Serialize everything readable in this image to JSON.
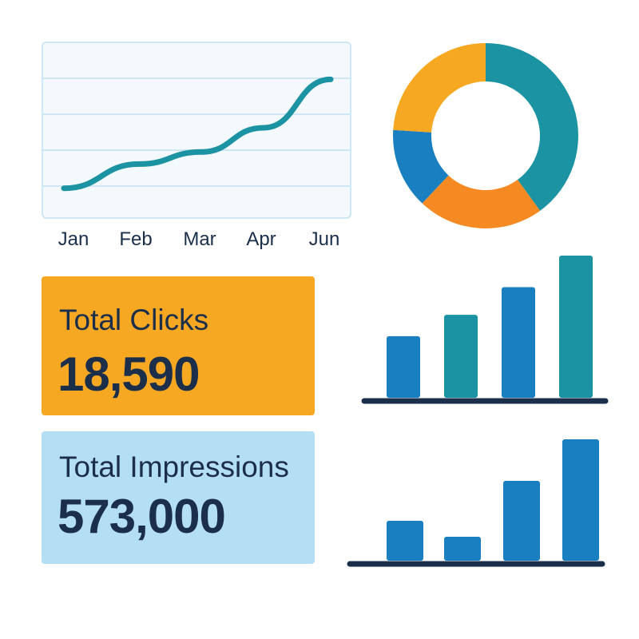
{
  "colors": {
    "teal": "#1b93a3",
    "blue": "#1a7fc0",
    "orange": "#f7a823",
    "deep_orange": "#f58a22",
    "navy": "#1b2e4a",
    "light_blue": "#b4def4"
  },
  "kpis": {
    "clicks": {
      "label": "Total Clicks",
      "value": "18,590"
    },
    "impressions": {
      "label": "Total Impressions",
      "value": "573,000"
    }
  },
  "chart_data": [
    {
      "type": "line",
      "categories": [
        "Jan",
        "Feb",
        "Mar",
        "Apr",
        "Jun"
      ],
      "values": [
        1.2,
        2.4,
        3.0,
        4.2,
        6.6
      ],
      "ylim": [
        0,
        8
      ],
      "grid": true,
      "color": "#1b93a3"
    },
    {
      "type": "pie",
      "donut": true,
      "slices": [
        {
          "value": 40,
          "color": "#1b93a3"
        },
        {
          "value": 22,
          "color": "#f58a22"
        },
        {
          "value": 14,
          "color": "#1a7fc0"
        },
        {
          "value": 24,
          "color": "#f7a823"
        }
      ]
    },
    {
      "type": "bar",
      "values": [
        78,
        105,
        140,
        180
      ],
      "colors": [
        "#1a7fc0",
        "#1b93a3",
        "#1a7fc0",
        "#1b93a3"
      ],
      "ylim": [
        0,
        180
      ]
    },
    {
      "type": "bar",
      "values": [
        50,
        30,
        100,
        152
      ],
      "colors": [
        "#1a7fc0",
        "#1a7fc0",
        "#1a7fc0",
        "#1a7fc0"
      ],
      "ylim": [
        0,
        152
      ]
    }
  ]
}
